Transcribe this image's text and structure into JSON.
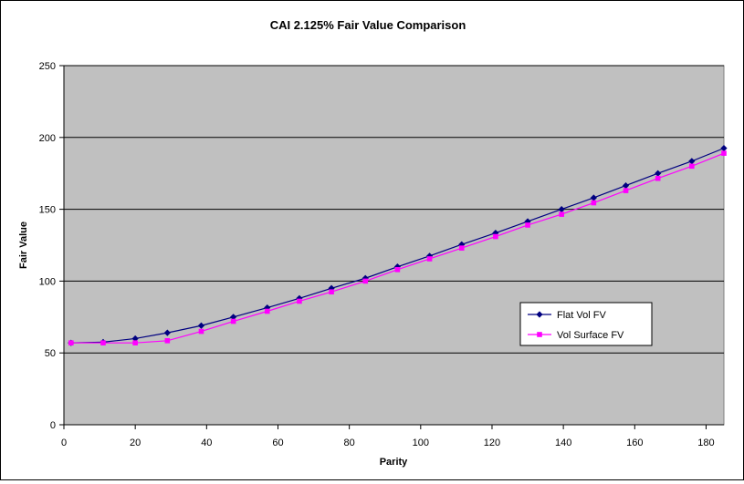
{
  "chart_data": {
    "type": "line",
    "title": "CAI 2.125% Fair Value Comparison",
    "xlabel": "Parity",
    "ylabel": "Fair Value",
    "xlim": [
      0,
      185
    ],
    "ylim": [
      0,
      250
    ],
    "xticks": [
      0,
      20,
      40,
      60,
      80,
      100,
      120,
      140,
      160,
      180
    ],
    "yticks": [
      0,
      50,
      100,
      150,
      200,
      250
    ],
    "grid": "horizontal",
    "plot_background": "#c0c0c0",
    "legend_position": "right-lower-middle",
    "series": [
      {
        "name": "Flat Vol FV",
        "color": "#000080",
        "marker": "diamond",
        "x": [
          2,
          11,
          20,
          29,
          38.5,
          47.5,
          57,
          66,
          75,
          84.5,
          93.5,
          102.5,
          111.5,
          121,
          130,
          139.5,
          148.5,
          157.5,
          166.5,
          176,
          185
        ],
        "y": [
          57,
          57.5,
          60,
          64,
          69,
          75,
          81.5,
          88,
          95,
          102,
          110,
          117.5,
          125.5,
          133.5,
          141.5,
          150,
          158,
          166.5,
          175,
          183.5,
          192.5
        ]
      },
      {
        "name": "Vol Surface FV",
        "color": "#ff00ff",
        "marker": "square",
        "x": [
          2,
          11,
          20,
          29,
          38.5,
          47.5,
          57,
          66,
          75,
          84.5,
          93.5,
          102.5,
          111.5,
          121,
          130,
          139.5,
          148.5,
          157.5,
          166.5,
          176,
          185
        ],
        "y": [
          57,
          57,
          57,
          58.5,
          65,
          72,
          79,
          86,
          92.5,
          100,
          108,
          115.5,
          123,
          131,
          139,
          146.5,
          154.5,
          163,
          171.5,
          180,
          189
        ]
      }
    ]
  }
}
